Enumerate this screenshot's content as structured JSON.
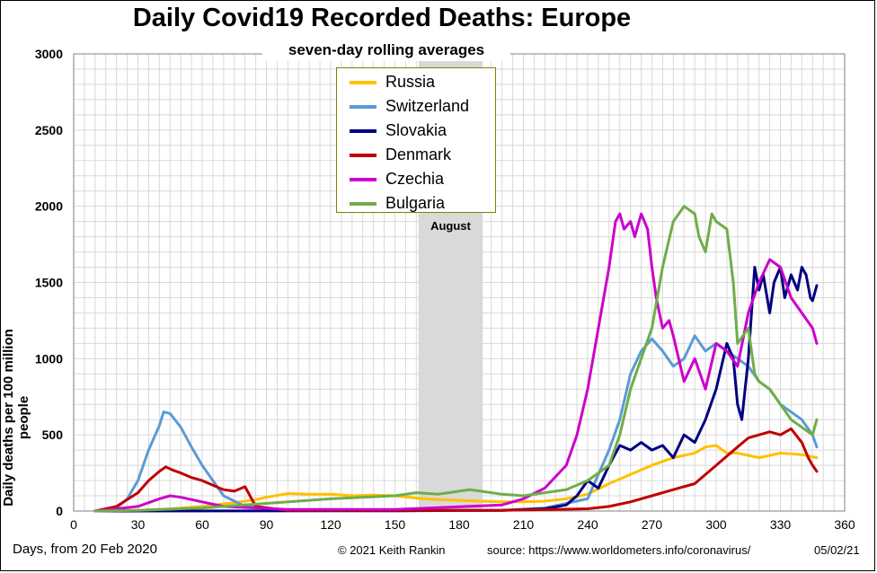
{
  "chart_data": {
    "type": "line",
    "title": "Daily Covid19 Recorded Deaths: Europe",
    "subtitle": "seven-day rolling averages",
    "xlabel": "Days, from 20 Feb 2020",
    "ylabel": "Daily deaths per 100 million people",
    "xlim": [
      0,
      360
    ],
    "ylim": [
      0,
      3000
    ],
    "xticks": [
      0,
      30,
      60,
      90,
      120,
      150,
      180,
      210,
      240,
      270,
      300,
      330,
      360
    ],
    "yticks": [
      0,
      500,
      1000,
      1500,
      2000,
      2500,
      3000
    ],
    "grid": true,
    "legend_position": "top-center",
    "annotation": {
      "label": "August",
      "x_range": [
        161,
        191
      ]
    },
    "series": [
      {
        "name": "Russia",
        "color": "#ffc000",
        "x": [
          10,
          30,
          45,
          60,
          75,
          85,
          90,
          100,
          110,
          120,
          130,
          140,
          150,
          160,
          170,
          180,
          190,
          200,
          210,
          220,
          230,
          240,
          250,
          260,
          270,
          280,
          290,
          295,
          300,
          305,
          310,
          320,
          330,
          340,
          347
        ],
        "y": [
          0,
          5,
          15,
          30,
          55,
          75,
          90,
          115,
          110,
          110,
          100,
          105,
          100,
          85,
          75,
          70,
          65,
          60,
          60,
          65,
          80,
          110,
          180,
          240,
          300,
          350,
          380,
          420,
          430,
          380,
          380,
          350,
          380,
          370,
          350
        ]
      },
      {
        "name": "Switzerland",
        "color": "#5b9bd5",
        "x": [
          10,
          20,
          25,
          30,
          35,
          40,
          42,
          45,
          50,
          55,
          60,
          65,
          70,
          80,
          100,
          150,
          200,
          220,
          240,
          250,
          255,
          260,
          265,
          270,
          275,
          280,
          285,
          290,
          295,
          300,
          305,
          310,
          315,
          320,
          325,
          330,
          335,
          340,
          345,
          347
        ],
        "y": [
          0,
          20,
          80,
          200,
          400,
          560,
          650,
          640,
          550,
          420,
          300,
          200,
          100,
          30,
          5,
          2,
          5,
          20,
          80,
          400,
          600,
          900,
          1050,
          1130,
          1050,
          950,
          1000,
          1150,
          1050,
          1100,
          1050,
          1000,
          950,
          850,
          800,
          700,
          650,
          600,
          500,
          420
        ]
      },
      {
        "name": "Slovakia",
        "color": "#000080",
        "x": [
          10,
          150,
          200,
          220,
          230,
          235,
          240,
          245,
          250,
          255,
          260,
          265,
          270,
          275,
          280,
          285,
          290,
          295,
          300,
          305,
          308,
          310,
          312,
          315,
          318,
          320,
          322,
          325,
          327,
          330,
          332,
          335,
          338,
          340,
          342,
          344,
          345,
          347
        ],
        "y": [
          0,
          2,
          5,
          15,
          40,
          100,
          200,
          150,
          300,
          430,
          400,
          450,
          400,
          430,
          350,
          500,
          450,
          600,
          800,
          1100,
          1000,
          700,
          600,
          1000,
          1600,
          1450,
          1550,
          1300,
          1500,
          1600,
          1400,
          1550,
          1450,
          1600,
          1550,
          1400,
          1380,
          1480
        ]
      },
      {
        "name": "Denmark",
        "color": "#c00000",
        "x": [
          10,
          20,
          30,
          35,
          40,
          43,
          46,
          50,
          55,
          60,
          65,
          70,
          75,
          80,
          85,
          100,
          200,
          240,
          250,
          260,
          270,
          280,
          290,
          300,
          310,
          315,
          320,
          325,
          330,
          335,
          340,
          343,
          345,
          347
        ],
        "y": [
          0,
          30,
          120,
          200,
          260,
          290,
          270,
          250,
          220,
          200,
          170,
          140,
          130,
          160,
          30,
          5,
          5,
          15,
          30,
          60,
          100,
          140,
          180,
          300,
          420,
          480,
          500,
          520,
          500,
          540,
          450,
          350,
          300,
          260
        ]
      },
      {
        "name": "Czechia",
        "color": "#cc00cc",
        "x": [
          10,
          30,
          40,
          45,
          50,
          60,
          70,
          100,
          150,
          200,
          210,
          220,
          230,
          235,
          240,
          245,
          250,
          253,
          255,
          257,
          260,
          262,
          265,
          268,
          270,
          272,
          275,
          278,
          280,
          285,
          290,
          295,
          300,
          305,
          310,
          315,
          320,
          325,
          330,
          335,
          340,
          345,
          347
        ],
        "y": [
          0,
          30,
          80,
          100,
          90,
          60,
          30,
          10,
          10,
          40,
          80,
          150,
          300,
          500,
          800,
          1200,
          1600,
          1900,
          1950,
          1850,
          1900,
          1800,
          1950,
          1850,
          1600,
          1400,
          1200,
          1250,
          1150,
          850,
          1000,
          800,
          1100,
          1050,
          950,
          1300,
          1500,
          1650,
          1600,
          1400,
          1300,
          1200,
          1100
        ]
      },
      {
        "name": "Bulgaria",
        "color": "#70ad47",
        "x": [
          10,
          30,
          60,
          90,
          120,
          150,
          160,
          170,
          180,
          185,
          190,
          200,
          210,
          220,
          230,
          240,
          250,
          255,
          260,
          265,
          270,
          275,
          280,
          285,
          290,
          292,
          295,
          298,
          300,
          305,
          308,
          310,
          315,
          318,
          320,
          325,
          330,
          335,
          340,
          345,
          347
        ],
        "y": [
          0,
          5,
          20,
          50,
          80,
          100,
          120,
          110,
          130,
          140,
          130,
          110,
          100,
          120,
          140,
          200,
          300,
          500,
          800,
          1000,
          1200,
          1600,
          1900,
          2000,
          1950,
          1800,
          1700,
          1950,
          1900,
          1850,
          1500,
          1100,
          1200,
          900,
          850,
          800,
          700,
          600,
          550,
          500,
          600
        ]
      }
    ]
  },
  "footer": {
    "copyright": "© 2021  Keith Rankin",
    "source": "source:  https://www.worldometers.info/coronavirus/",
    "date": "05/02/21"
  }
}
